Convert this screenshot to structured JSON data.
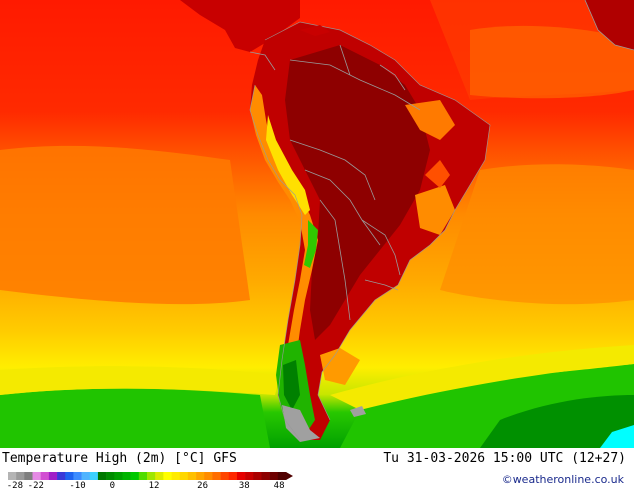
{
  "title": "Temperature High (2m) [°C] GFS",
  "datetime": "Tu 31-03-2026 15:00 UTC (12+27)",
  "credit": "©weatheronline.co.uk",
  "legend": {
    "ticks": [
      "-28",
      "-22",
      "-10",
      "0",
      "12",
      "26",
      "38",
      "48"
    ],
    "colors": [
      "#b4b4b4",
      "#9a9a9a",
      "#7f7f7f",
      "#e58ae5",
      "#d24ed2",
      "#a020c8",
      "#3a3ad8",
      "#1e64f0",
      "#3c8cff",
      "#50b4ff",
      "#3cd2ff",
      "#007800",
      "#008c00",
      "#00a000",
      "#00b400",
      "#00c800",
      "#50dc00",
      "#a0e600",
      "#dceb00",
      "#ffff00",
      "#ffeb00",
      "#ffd700",
      "#ffc000",
      "#ffa500",
      "#ff8c00",
      "#ff6e00",
      "#ff4600",
      "#ff2800",
      "#e60000",
      "#c80000",
      "#aa0000",
      "#8c0000",
      "#6e0000",
      "#500000"
    ],
    "tick_positions": [
      -28,
      -22,
      -10,
      0,
      12,
      26,
      38,
      48
    ],
    "range": [
      -30,
      50
    ]
  },
  "map": {
    "region": "South America",
    "colors": {
      "ocean_north": "#ff2000",
      "ocean_mid": "#ff8800",
      "ocean_south": "#ffc400",
      "ocean_yellow": "#fff000",
      "cold_green": "#22c800",
      "dark_green": "#008c00",
      "land_hot": "#b80000",
      "land_very_hot": "#8c0000",
      "ice": "#00ffff",
      "border": "#9a9a9a"
    }
  }
}
